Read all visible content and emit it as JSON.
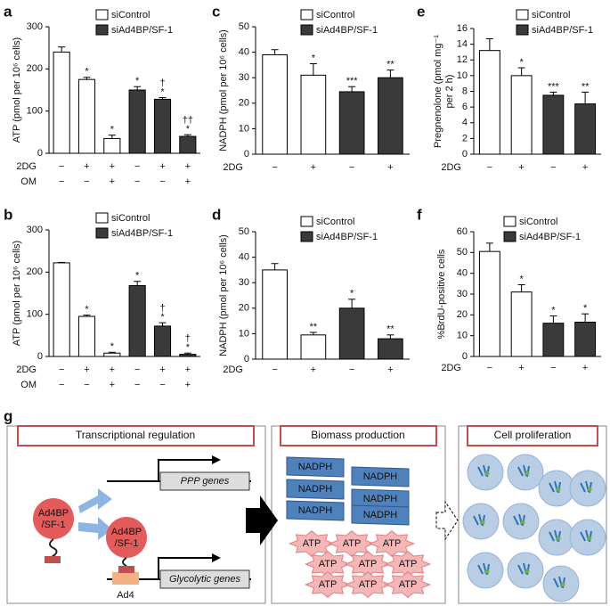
{
  "chart_data": [
    {
      "type": "bar",
      "panel": "a",
      "ylabel": "ATP (pmol per 10⁶ cells)",
      "ylim": [
        0,
        300
      ],
      "yticks": [
        0,
        100,
        200,
        300
      ],
      "conditions": [
        {
          "name": "2DG",
          "values": [
            "−",
            "+",
            "+",
            "−",
            "+",
            "+"
          ]
        },
        {
          "name": "OM",
          "values": [
            "−",
            "−",
            "+",
            "−",
            "−",
            "+"
          ]
        }
      ],
      "series": [
        {
          "name": "siControl",
          "color": "#ffffff",
          "values": [
            240,
            175,
            35,
            null,
            null,
            null
          ],
          "errors": [
            12,
            5,
            8,
            null,
            null,
            null
          ],
          "markers": [
            null,
            [
              "*"
            ],
            [
              "*"
            ],
            null,
            null,
            null
          ]
        },
        {
          "name": "siAd4BP/SF-1",
          "color": "#3a3a3a",
          "values": [
            null,
            null,
            null,
            150,
            128,
            40
          ],
          "errors": [
            null,
            null,
            null,
            8,
            4,
            4
          ],
          "markers": [
            null,
            null,
            null,
            [
              "*"
            ],
            [
              "†",
              "*"
            ],
            [
              "††",
              "*"
            ]
          ]
        }
      ]
    },
    {
      "type": "bar",
      "panel": "b",
      "ylabel": "ATP (pmol per 10⁶ cells)",
      "ylim": [
        0,
        300
      ],
      "yticks": [
        0,
        100,
        200,
        300
      ],
      "conditions": [
        {
          "name": "2DG",
          "values": [
            "−",
            "+",
            "+",
            "−",
            "+",
            "+"
          ]
        },
        {
          "name": "OM",
          "values": [
            "−",
            "−",
            "+",
            "−",
            "−",
            "+"
          ]
        }
      ],
      "series": [
        {
          "name": "siControl",
          "color": "#ffffff",
          "values": [
            222,
            95,
            8,
            null,
            null,
            null
          ],
          "errors": [
            1,
            3,
            2,
            null,
            null,
            null
          ],
          "markers": [
            null,
            [
              "*"
            ],
            [
              "*"
            ],
            null,
            null,
            null
          ]
        },
        {
          "name": "siAd4BP/SF-1",
          "color": "#3a3a3a",
          "values": [
            null,
            null,
            null,
            168,
            72,
            5
          ],
          "errors": [
            null,
            null,
            null,
            10,
            8,
            3
          ],
          "markers": [
            null,
            null,
            null,
            [
              "*"
            ],
            [
              "†",
              "*"
            ],
            [
              "†",
              "*"
            ]
          ]
        }
      ]
    },
    {
      "type": "bar",
      "panel": "c",
      "ylabel": "NADPH (pmol per 10⁶ cells)",
      "ylim": [
        0,
        50
      ],
      "yticks": [
        0,
        10,
        20,
        30,
        40,
        50
      ],
      "conditions": [
        {
          "name": "2DG",
          "values": [
            "−",
            "+",
            "−",
            "+"
          ]
        }
      ],
      "series": [
        {
          "name": "siControl",
          "color": "#ffffff",
          "values": [
            39,
            31,
            null,
            null
          ],
          "errors": [
            2,
            4.5,
            null,
            null
          ],
          "markers": [
            null,
            [
              "*"
            ],
            null,
            null
          ]
        },
        {
          "name": "siAd4BP/SF-1",
          "color": "#3a3a3a",
          "values": [
            null,
            null,
            24.5,
            30
          ],
          "errors": [
            null,
            null,
            2,
            3
          ],
          "markers": [
            null,
            null,
            [
              "***"
            ],
            [
              "**"
            ]
          ]
        }
      ]
    },
    {
      "type": "bar",
      "panel": "d",
      "ylabel": "NADPH (pmol per 10⁶ cells)",
      "ylim": [
        0,
        50
      ],
      "yticks": [
        0,
        10,
        20,
        30,
        40,
        50
      ],
      "conditions": [
        {
          "name": "2DG",
          "values": [
            "−",
            "+",
            "−",
            "+"
          ]
        }
      ],
      "series": [
        {
          "name": "siControl",
          "color": "#ffffff",
          "values": [
            35,
            9.5,
            null,
            null
          ],
          "errors": [
            2.5,
            1,
            null,
            null
          ],
          "markers": [
            null,
            [
              "**"
            ],
            null,
            null
          ]
        },
        {
          "name": "siAd4BP/SF-1",
          "color": "#3a3a3a",
          "values": [
            null,
            null,
            20,
            8
          ],
          "errors": [
            null,
            null,
            3.5,
            1.5
          ],
          "markers": [
            null,
            null,
            [
              "*"
            ],
            [
              "**"
            ]
          ]
        }
      ]
    },
    {
      "type": "bar",
      "panel": "e",
      "ylabel": [
        "Pregnenolone (pmol mg⁻¹",
        "per 2 h)"
      ],
      "ylim": [
        0,
        16
      ],
      "yticks": [
        0,
        2,
        4,
        6,
        8,
        10,
        12,
        14,
        16
      ],
      "conditions": [
        {
          "name": "2DG",
          "values": [
            "−",
            "+",
            "−",
            "+"
          ]
        }
      ],
      "series": [
        {
          "name": "siControl",
          "color": "#ffffff",
          "values": [
            13.2,
            10,
            null,
            null
          ],
          "errors": [
            1.5,
            1,
            null,
            null
          ],
          "markers": [
            null,
            [
              "*"
            ],
            null,
            null
          ]
        },
        {
          "name": "siAd4BP/SF-1",
          "color": "#3a3a3a",
          "values": [
            null,
            null,
            7.5,
            6.4
          ],
          "errors": [
            null,
            null,
            0.4,
            1.5
          ],
          "markers": [
            null,
            null,
            [
              "***"
            ],
            [
              "**"
            ]
          ]
        }
      ]
    },
    {
      "type": "bar",
      "panel": "f",
      "ylabel": "%BrdU-positive cells",
      "ylim": [
        0,
        60
      ],
      "yticks": [
        0,
        10,
        20,
        30,
        40,
        50,
        60
      ],
      "conditions": [
        {
          "name": "2DG",
          "values": [
            "−",
            "+",
            "−",
            "+"
          ]
        }
      ],
      "series": [
        {
          "name": "siControl",
          "color": "#ffffff",
          "values": [
            50.5,
            31,
            null,
            null
          ],
          "errors": [
            4,
            3.5,
            null,
            null
          ],
          "markers": [
            null,
            [
              "*"
            ],
            null,
            null
          ]
        },
        {
          "name": "siAd4BP/SF-1",
          "color": "#3a3a3a",
          "values": [
            null,
            null,
            16,
            16.5
          ],
          "errors": [
            null,
            null,
            3.5,
            4
          ],
          "markers": [
            null,
            null,
            [
              "*"
            ],
            [
              "*"
            ]
          ]
        }
      ]
    }
  ],
  "diagram": {
    "panel": "g",
    "boxes": [
      "Transcriptional regulation",
      "Biomass production",
      "Cell proliferation"
    ],
    "factor": [
      "Ad4BP",
      "/SF-1"
    ],
    "bound_factor": [
      "Ad4BP",
      "/SF-1"
    ],
    "element": "Ad4",
    "genes": [
      "PPP genes",
      "Glycolytic genes"
    ],
    "nadph": [
      "NADPH",
      "NADPH",
      "NADPH",
      "NADPH",
      "NADPH",
      "NADPH"
    ],
    "atp": [
      "ATP",
      "ATP",
      "ATP",
      "ATP",
      "ATP",
      "ATP",
      "ATP",
      "ATP",
      "ATP"
    ]
  }
}
